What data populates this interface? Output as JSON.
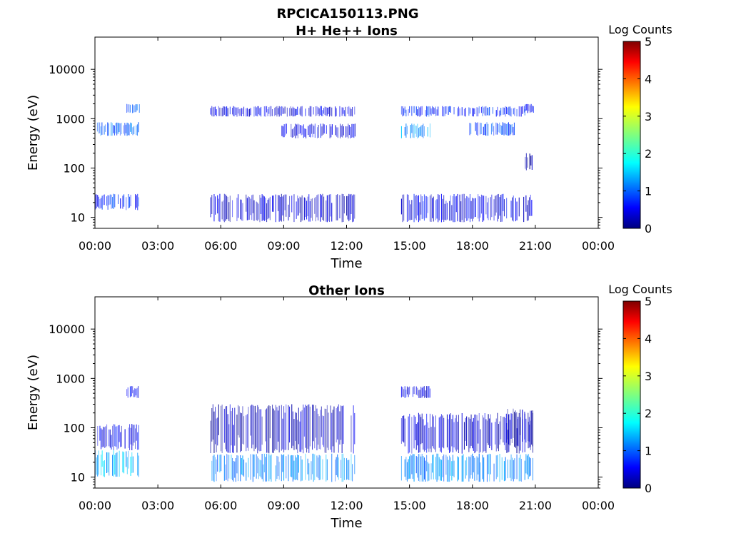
{
  "figure_title": "RPCICA150113.PNG",
  "chart_data": [
    {
      "type": "heatmap",
      "title": "H+ He++ Ions",
      "xlabel": "Time",
      "ylabel": "Energy (eV)",
      "x_ticks": [
        "00:00",
        "03:00",
        "06:00",
        "09:00",
        "12:00",
        "15:00",
        "18:00",
        "21:00",
        "00:00"
      ],
      "x_range_hours": [
        0,
        24
      ],
      "y_scale": "log",
      "y_ticks": [
        "10",
        "100",
        "1000",
        "10000"
      ],
      "y_range": [
        6,
        45000
      ],
      "colorbar": {
        "label": "Log Counts",
        "range": [
          0,
          5
        ],
        "ticks": [
          "0",
          "1",
          "2",
          "3",
          "4",
          "5"
        ],
        "colormap": "jet"
      },
      "data_intervals_hours": [
        [
          0.0,
          2.1
        ],
        [
          5.5,
          12.4
        ],
        [
          14.6,
          20.9
        ]
      ],
      "bands": [
        {
          "t": [
            0.0,
            2.1
          ],
          "e": [
            14,
            30
          ],
          "level": 0.8
        },
        {
          "t": [
            0.1,
            2.1
          ],
          "e": [
            450,
            850
          ],
          "level": 1.1
        },
        {
          "t": [
            1.5,
            2.1
          ],
          "e": [
            1300,
            2000
          ],
          "level": 1.0
        },
        {
          "t": [
            5.5,
            12.4
          ],
          "e": [
            8,
            30
          ],
          "level": 0.4
        },
        {
          "t": [
            5.5,
            12.4
          ],
          "e": [
            1100,
            1800
          ],
          "level": 0.5
        },
        {
          "t": [
            8.9,
            12.4
          ],
          "e": [
            400,
            800
          ],
          "level": 0.5
        },
        {
          "t": [
            14.6,
            20.9
          ],
          "e": [
            8,
            30
          ],
          "level": 0.5
        },
        {
          "t": [
            14.6,
            16.0
          ],
          "e": [
            400,
            800
          ],
          "level": 1.4
        },
        {
          "t": [
            14.6,
            20.5
          ],
          "e": [
            1100,
            1800
          ],
          "level": 0.8
        },
        {
          "t": [
            17.8,
            20.0
          ],
          "e": [
            450,
            850
          ],
          "level": 1.0
        },
        {
          "t": [
            20.5,
            20.9
          ],
          "e": [
            90,
            200
          ],
          "level": 0.2
        },
        {
          "t": [
            20.4,
            20.9
          ],
          "e": [
            1300,
            2000
          ],
          "level": 0.6
        }
      ]
    },
    {
      "type": "heatmap",
      "title": "Other Ions",
      "xlabel": "Time",
      "ylabel": "Energy (eV)",
      "x_ticks": [
        "00:00",
        "03:00",
        "06:00",
        "09:00",
        "12:00",
        "15:00",
        "18:00",
        "21:00",
        "00:00"
      ],
      "x_range_hours": [
        0,
        24
      ],
      "y_scale": "log",
      "y_ticks": [
        "10",
        "100",
        "1000",
        "10000"
      ],
      "y_range": [
        6,
        45000
      ],
      "colorbar": {
        "label": "Log Counts",
        "range": [
          0,
          5
        ],
        "ticks": [
          "0",
          "1",
          "2",
          "3",
          "4",
          "5"
        ],
        "colormap": "jet"
      },
      "data_intervals_hours": [
        [
          0.0,
          2.1
        ],
        [
          5.5,
          12.4
        ],
        [
          14.6,
          20.9
        ]
      ],
      "bands": [
        {
          "t": [
            0.0,
            2.1
          ],
          "e": [
            10,
            35
          ],
          "level": 1.5
        },
        {
          "t": [
            0.0,
            2.1
          ],
          "e": [
            35,
            120
          ],
          "level": 0.5
        },
        {
          "t": [
            1.5,
            2.1
          ],
          "e": [
            400,
            700
          ],
          "level": 0.6
        },
        {
          "t": [
            5.5,
            12.4
          ],
          "e": [
            8,
            30
          ],
          "level": 1.3
        },
        {
          "t": [
            5.5,
            12.4
          ],
          "e": [
            30,
            300
          ],
          "level": 0.3
        },
        {
          "t": [
            14.6,
            20.9
          ],
          "e": [
            8,
            30
          ],
          "level": 1.3
        },
        {
          "t": [
            14.6,
            20.9
          ],
          "e": [
            30,
            200
          ],
          "level": 0.4
        },
        {
          "t": [
            19.6,
            20.9
          ],
          "e": [
            40,
            250
          ],
          "level": 0.2
        },
        {
          "t": [
            14.6,
            16.0
          ],
          "e": [
            400,
            700
          ],
          "level": 0.5
        }
      ]
    }
  ]
}
